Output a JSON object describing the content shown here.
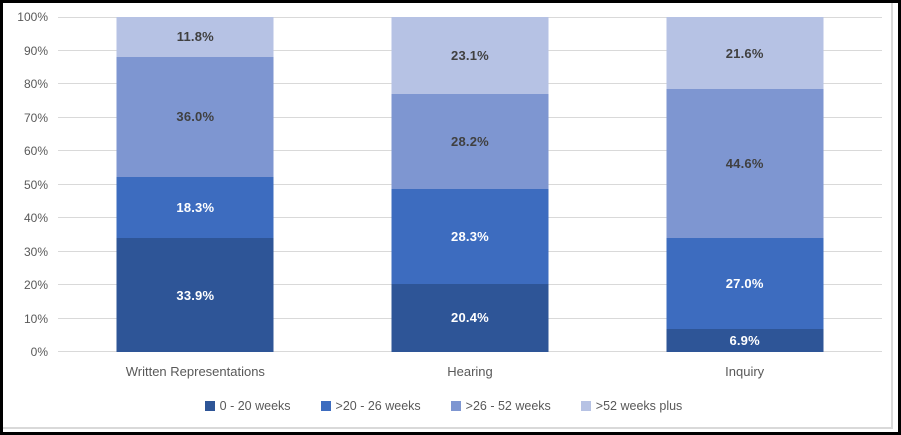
{
  "chart_data": {
    "type": "bar",
    "subtype": "100-percent-stacked-column",
    "title": "",
    "xlabel": "",
    "ylabel": "",
    "grid": true,
    "legend_position": "bottom",
    "categories": [
      "Written Representations",
      "Hearing",
      "Inquiry"
    ],
    "series": [
      {
        "name": "0 - 20 weeks",
        "color": "#2E5597",
        "label_color": "#FFFFFF",
        "values": [
          33.9,
          20.4,
          6.9
        ]
      },
      {
        "name": ">20 - 26 weeks",
        "color": "#3D6CBF",
        "label_color": "#FFFFFF",
        "values": [
          18.3,
          28.3,
          27.0
        ]
      },
      {
        "name": ">26 - 52 weeks",
        "color": "#7E96D1",
        "label_color": "#404040",
        "values": [
          36.0,
          28.2,
          44.6
        ]
      },
      {
        "name": ">52 weeks plus",
        "color": "#B6C2E4",
        "label_color": "#404040",
        "values": [
          11.8,
          23.1,
          21.6
        ]
      }
    ],
    "data_labels": [
      [
        "33.9%",
        "20.4%",
        "6.9%"
      ],
      [
        "18.3%",
        "28.3%",
        "27.0%"
      ],
      [
        "36.0%",
        "28.2%",
        "44.6%"
      ],
      [
        "11.8%",
        "23.1%",
        "21.6%"
      ]
    ],
    "y_axis": {
      "min": 0,
      "max": 100,
      "step": 10,
      "tick_labels": [
        "0%",
        "10%",
        "20%",
        "30%",
        "40%",
        "50%",
        "60%",
        "70%",
        "80%",
        "90%",
        "100%"
      ]
    }
  },
  "style": {
    "axis_text_color": "#595959",
    "gridline_color": "#D9D9D9",
    "chart_border_color": "#D9D9D9",
    "frame_border_color": "#000000",
    "background_color": "#FFFFFF"
  }
}
